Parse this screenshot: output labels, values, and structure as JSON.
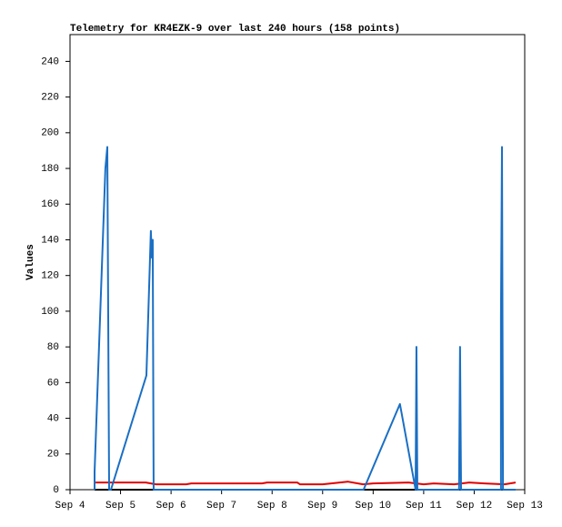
{
  "chart_data": {
    "type": "line",
    "title": "Telemetry for KR4EZK-9 over last 240 hours (158 points)",
    "y_label": "Values",
    "xlim": [
      4,
      13
    ],
    "ylim": [
      0,
      255
    ],
    "xticks": [
      {
        "value": 4,
        "label": "Sep 4"
      },
      {
        "value": 5,
        "label": "Sep 5"
      },
      {
        "value": 6,
        "label": "Sep 6"
      },
      {
        "value": 7,
        "label": "Sep 7"
      },
      {
        "value": 8,
        "label": "Sep 8"
      },
      {
        "value": 9,
        "label": "Sep 9"
      },
      {
        "value": 10,
        "label": "Sep 10"
      },
      {
        "value": 11,
        "label": "Sep 11"
      },
      {
        "value": 12,
        "label": "Sep 12"
      },
      {
        "value": 13,
        "label": "Sep 13"
      }
    ],
    "yticks": [
      0,
      20,
      40,
      60,
      80,
      100,
      120,
      140,
      160,
      180,
      200,
      220,
      240
    ],
    "series": [
      {
        "color": "#e00000",
        "x": [
          4.49,
          5.5,
          5.7,
          6.3,
          6.4,
          7.8,
          7.9,
          8.5,
          8.55,
          9.0,
          9.5,
          9.8,
          10.0,
          10.7,
          11.0,
          11.2,
          11.6,
          11.9,
          12.2,
          12.6,
          12.82
        ],
        "values": [
          4,
          4,
          3,
          3,
          3.5,
          3.5,
          4,
          4,
          3,
          3,
          4.5,
          3,
          3.5,
          4,
          3,
          3.5,
          3,
          4,
          3.5,
          3,
          4
        ]
      },
      {
        "color": "#000000",
        "x": [
          4.49,
          12.82
        ],
        "values": [
          0,
          0
        ]
      },
      {
        "color": "#1a6fc4",
        "x": [
          4.486,
          4.486,
          4.7,
          4.738,
          4.756,
          4.774,
          4.81,
          5.512,
          5.6,
          5.62,
          5.637,
          5.655,
          9.81,
          10.53,
          10.84,
          10.857,
          10.875,
          11.7,
          11.72,
          11.74,
          12.53,
          12.53,
          12.55,
          12.57,
          12.82
        ],
        "values": [
          0,
          10,
          180,
          192,
          97,
          0,
          0,
          64,
          145,
          130,
          140,
          0,
          0,
          48,
          0,
          80,
          0,
          0,
          80,
          0,
          0,
          97,
          192,
          0,
          0
        ]
      }
    ]
  }
}
